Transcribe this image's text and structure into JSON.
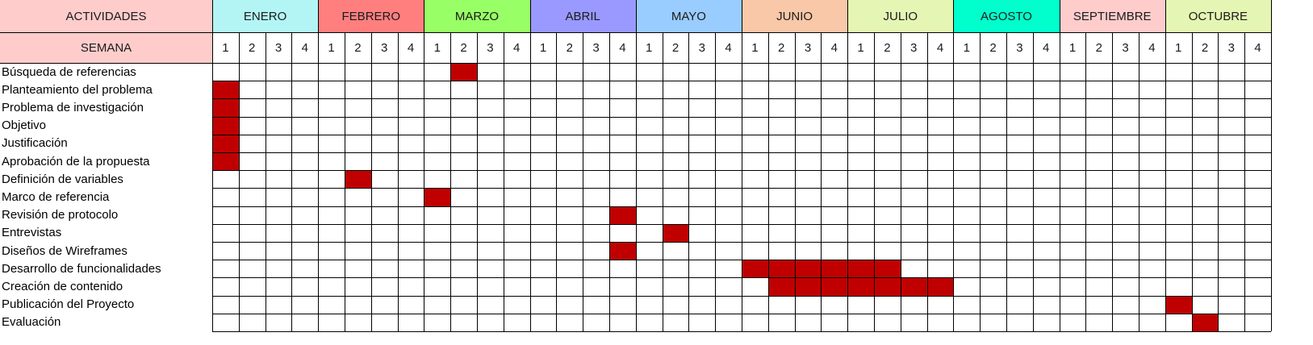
{
  "header": {
    "activities_label": "ACTIVIDADES",
    "week_label": "SEMANA"
  },
  "colors": {
    "activity_header_bg": "#ffcccc",
    "bar": "#c00000",
    "grid": "#000000"
  },
  "months": [
    {
      "name": "ENERO",
      "color": "#b3f5f5",
      "weeks": [
        "1",
        "2",
        "3",
        "4"
      ]
    },
    {
      "name": "FEBRERO",
      "color": "#ff7f7f",
      "weeks": [
        "1",
        "2",
        "3",
        "4"
      ]
    },
    {
      "name": "MARZO",
      "color": "#99ff66",
      "weeks": [
        "1",
        "2",
        "3",
        "4"
      ]
    },
    {
      "name": "ABRIL",
      "color": "#9999ff",
      "weeks": [
        "1",
        "2",
        "3",
        "4"
      ]
    },
    {
      "name": "MAYO",
      "color": "#99ccff",
      "weeks": [
        "1",
        "2",
        "3",
        "4"
      ]
    },
    {
      "name": "JUNIO",
      "color": "#f9c8a8",
      "weeks": [
        "1",
        "2",
        "3",
        "4"
      ]
    },
    {
      "name": "JULIO",
      "color": "#e5f5b3",
      "weeks": [
        "1",
        "2",
        "3",
        "4"
      ]
    },
    {
      "name": "AGOSTO",
      "color": "#00ffcc",
      "weeks": [
        "1",
        "2",
        "3",
        "4"
      ]
    },
    {
      "name": "SEPTIEMBRE",
      "color": "#ffcccc",
      "weeks": [
        "1",
        "2",
        "3",
        "4"
      ]
    },
    {
      "name": "OCTUBRE",
      "color": "#e5f5b3",
      "weeks": [
        "1",
        "2",
        "3",
        "4"
      ]
    }
  ],
  "activities": [
    {
      "name": "Búsqueda de referencias",
      "weeks": [
        9
      ]
    },
    {
      "name": "Planteamiento del problema",
      "weeks": [
        0
      ]
    },
    {
      "name": "Problema de investigación",
      "weeks": [
        0
      ]
    },
    {
      "name": "Objetivo",
      "weeks": [
        0
      ]
    },
    {
      "name": "Justificación",
      "weeks": [
        0
      ]
    },
    {
      "name": "Aprobación de la propuesta",
      "weeks": [
        0
      ]
    },
    {
      "name": "Definición de variables",
      "weeks": [
        5
      ]
    },
    {
      "name": "Marco de referencia",
      "weeks": [
        8
      ]
    },
    {
      "name": "Revisión de protocolo",
      "weeks": [
        15
      ]
    },
    {
      "name": "Entrevistas",
      "weeks": [
        17
      ]
    },
    {
      "name": "Diseños de Wireframes",
      "weeks": [
        15
      ]
    },
    {
      "name": "Desarrollo de funcionalidades",
      "weeks": [
        20,
        21,
        22,
        23,
        24,
        25
      ]
    },
    {
      "name": "Creación de contenido",
      "weeks": [
        21,
        22,
        23,
        24,
        25,
        26,
        27
      ]
    },
    {
      "name": "Publicación del Proyecto",
      "weeks": [
        36
      ]
    },
    {
      "name": "Evaluación",
      "weeks": [
        37
      ]
    }
  ]
}
